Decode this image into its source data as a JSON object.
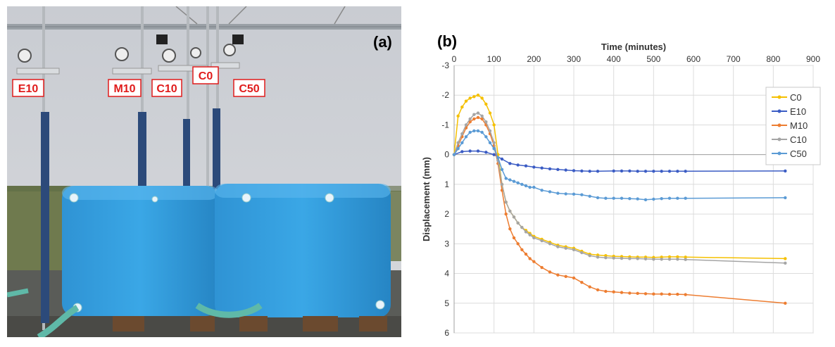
{
  "photo": {
    "panel_label": "(a)",
    "gauge_labels": [
      "E10",
      "M10",
      "C10",
      "C0",
      "C50"
    ]
  },
  "chart_data": {
    "type": "line",
    "panel_label": "(b)",
    "title": "",
    "xlabel": "Time (minutes)",
    "ylabel": "Displacement (mm)",
    "xlim": [
      0,
      900
    ],
    "ylim": [
      -3,
      6
    ],
    "x_ticks": [
      0,
      100,
      200,
      300,
      400,
      500,
      600,
      700,
      800,
      900
    ],
    "y_ticks": [
      -3,
      -2,
      -1,
      0,
      1,
      2,
      3,
      4,
      5,
      6
    ],
    "y_tick_labels": [
      "-3",
      "-2",
      "-1",
      "0",
      "1",
      "2",
      "3",
      "4",
      "5",
      "6"
    ],
    "x_axis_position": "top",
    "y_inverted": true,
    "grid": true,
    "legend_position": "top-right",
    "series": [
      {
        "name": "C0",
        "color": "#f5c000",
        "x": [
          0,
          10,
          20,
          30,
          40,
          50,
          60,
          70,
          80,
          90,
          100,
          110,
          120,
          130,
          140,
          150,
          160,
          170,
          180,
          190,
          200,
          220,
          240,
          260,
          280,
          300,
          320,
          340,
          360,
          380,
          400,
          420,
          440,
          460,
          480,
          500,
          520,
          540,
          560,
          580,
          830
        ],
        "y": [
          0,
          -1.3,
          -1.6,
          -1.8,
          -1.9,
          -1.95,
          -2.0,
          -1.9,
          -1.7,
          -1.4,
          -1.0,
          0.0,
          1.0,
          1.6,
          1.9,
          2.1,
          2.3,
          2.45,
          2.55,
          2.65,
          2.75,
          2.85,
          2.95,
          3.05,
          3.1,
          3.15,
          3.25,
          3.35,
          3.38,
          3.4,
          3.42,
          3.43,
          3.44,
          3.45,
          3.45,
          3.46,
          3.45,
          3.44,
          3.44,
          3.45,
          3.5
        ]
      },
      {
        "name": "E10",
        "color": "#3b5cc4",
        "x": [
          0,
          20,
          40,
          60,
          80,
          100,
          120,
          140,
          160,
          180,
          200,
          220,
          240,
          260,
          280,
          300,
          320,
          340,
          360,
          400,
          420,
          440,
          460,
          480,
          500,
          520,
          540,
          560,
          580,
          830
        ],
        "y": [
          0,
          -0.1,
          -0.12,
          -0.12,
          -0.08,
          0.0,
          0.15,
          0.3,
          0.35,
          0.38,
          0.42,
          0.45,
          0.48,
          0.5,
          0.52,
          0.54,
          0.55,
          0.56,
          0.56,
          0.55,
          0.55,
          0.55,
          0.56,
          0.56,
          0.56,
          0.56,
          0.56,
          0.56,
          0.56,
          0.55
        ]
      },
      {
        "name": "M10",
        "color": "#ed7d31",
        "x": [
          0,
          10,
          20,
          30,
          40,
          50,
          60,
          70,
          80,
          90,
          100,
          110,
          120,
          130,
          140,
          150,
          160,
          170,
          180,
          190,
          200,
          220,
          240,
          260,
          280,
          300,
          320,
          340,
          360,
          380,
          400,
          420,
          440,
          460,
          480,
          500,
          520,
          540,
          560,
          580,
          830
        ],
        "y": [
          0,
          -0.3,
          -0.6,
          -0.9,
          -1.1,
          -1.2,
          -1.25,
          -1.2,
          -1.0,
          -0.7,
          -0.3,
          0.3,
          1.2,
          2.0,
          2.5,
          2.8,
          3.0,
          3.2,
          3.35,
          3.5,
          3.6,
          3.8,
          3.95,
          4.05,
          4.1,
          4.15,
          4.3,
          4.45,
          4.55,
          4.6,
          4.62,
          4.64,
          4.66,
          4.67,
          4.68,
          4.69,
          4.69,
          4.7,
          4.7,
          4.71,
          5.0
        ]
      },
      {
        "name": "C10",
        "color": "#a5a5a5",
        "x": [
          0,
          10,
          20,
          30,
          40,
          50,
          60,
          70,
          80,
          90,
          100,
          110,
          120,
          130,
          140,
          150,
          160,
          170,
          180,
          190,
          200,
          220,
          240,
          260,
          280,
          300,
          320,
          340,
          360,
          380,
          400,
          420,
          440,
          460,
          480,
          500,
          520,
          540,
          560,
          580,
          830
        ],
        "y": [
          0,
          -0.4,
          -0.7,
          -1.0,
          -1.2,
          -1.35,
          -1.4,
          -1.3,
          -1.1,
          -0.8,
          -0.4,
          0.2,
          1.0,
          1.6,
          1.9,
          2.1,
          2.3,
          2.45,
          2.6,
          2.7,
          2.8,
          2.9,
          3.0,
          3.1,
          3.15,
          3.2,
          3.3,
          3.4,
          3.45,
          3.47,
          3.48,
          3.49,
          3.5,
          3.5,
          3.51,
          3.52,
          3.52,
          3.52,
          3.52,
          3.53,
          3.65
        ]
      },
      {
        "name": "C50",
        "color": "#5b9bd5",
        "x": [
          0,
          10,
          20,
          30,
          40,
          50,
          60,
          70,
          80,
          90,
          100,
          110,
          120,
          130,
          140,
          150,
          160,
          170,
          180,
          190,
          200,
          220,
          240,
          260,
          280,
          300,
          320,
          340,
          360,
          380,
          400,
          420,
          440,
          460,
          480,
          500,
          520,
          540,
          560,
          580,
          830
        ],
        "y": [
          0,
          -0.2,
          -0.4,
          -0.6,
          -0.75,
          -0.8,
          -0.8,
          -0.75,
          -0.6,
          -0.4,
          -0.2,
          0.1,
          0.5,
          0.8,
          0.85,
          0.9,
          0.95,
          1.0,
          1.05,
          1.1,
          1.1,
          1.2,
          1.25,
          1.3,
          1.32,
          1.33,
          1.35,
          1.4,
          1.45,
          1.47,
          1.47,
          1.47,
          1.48,
          1.49,
          1.52,
          1.5,
          1.48,
          1.47,
          1.47,
          1.47,
          1.45
        ]
      }
    ]
  }
}
